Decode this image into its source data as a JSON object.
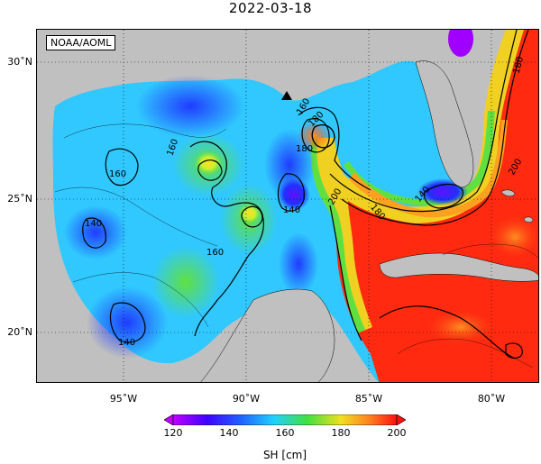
{
  "title": "2022-03-18",
  "credit": "NOAA/AOML",
  "lat_labels": [
    "30˚N",
    "25˚N",
    "20˚N"
  ],
  "lon_labels": [
    "95˚W",
    "90˚W",
    "85˚W",
    "80˚W"
  ],
  "colorbar": {
    "ticks": [
      "120",
      "140",
      "160",
      "180",
      "200"
    ],
    "label": "SH [cm]"
  },
  "contour_labels": [
    "160",
    "160",
    "160",
    "140",
    "140",
    "140",
    "160",
    "180",
    "200",
    "180",
    "140",
    "180",
    "200",
    "180"
  ],
  "colors": {
    "land": "#c0c0c0",
    "low_purple": "#a000ff",
    "blue": "#2040ff",
    "cyan": "#20c8ff",
    "green": "#40e040",
    "yellow": "#f0e020",
    "orange": "#ff8020",
    "red": "#ff2010"
  }
}
